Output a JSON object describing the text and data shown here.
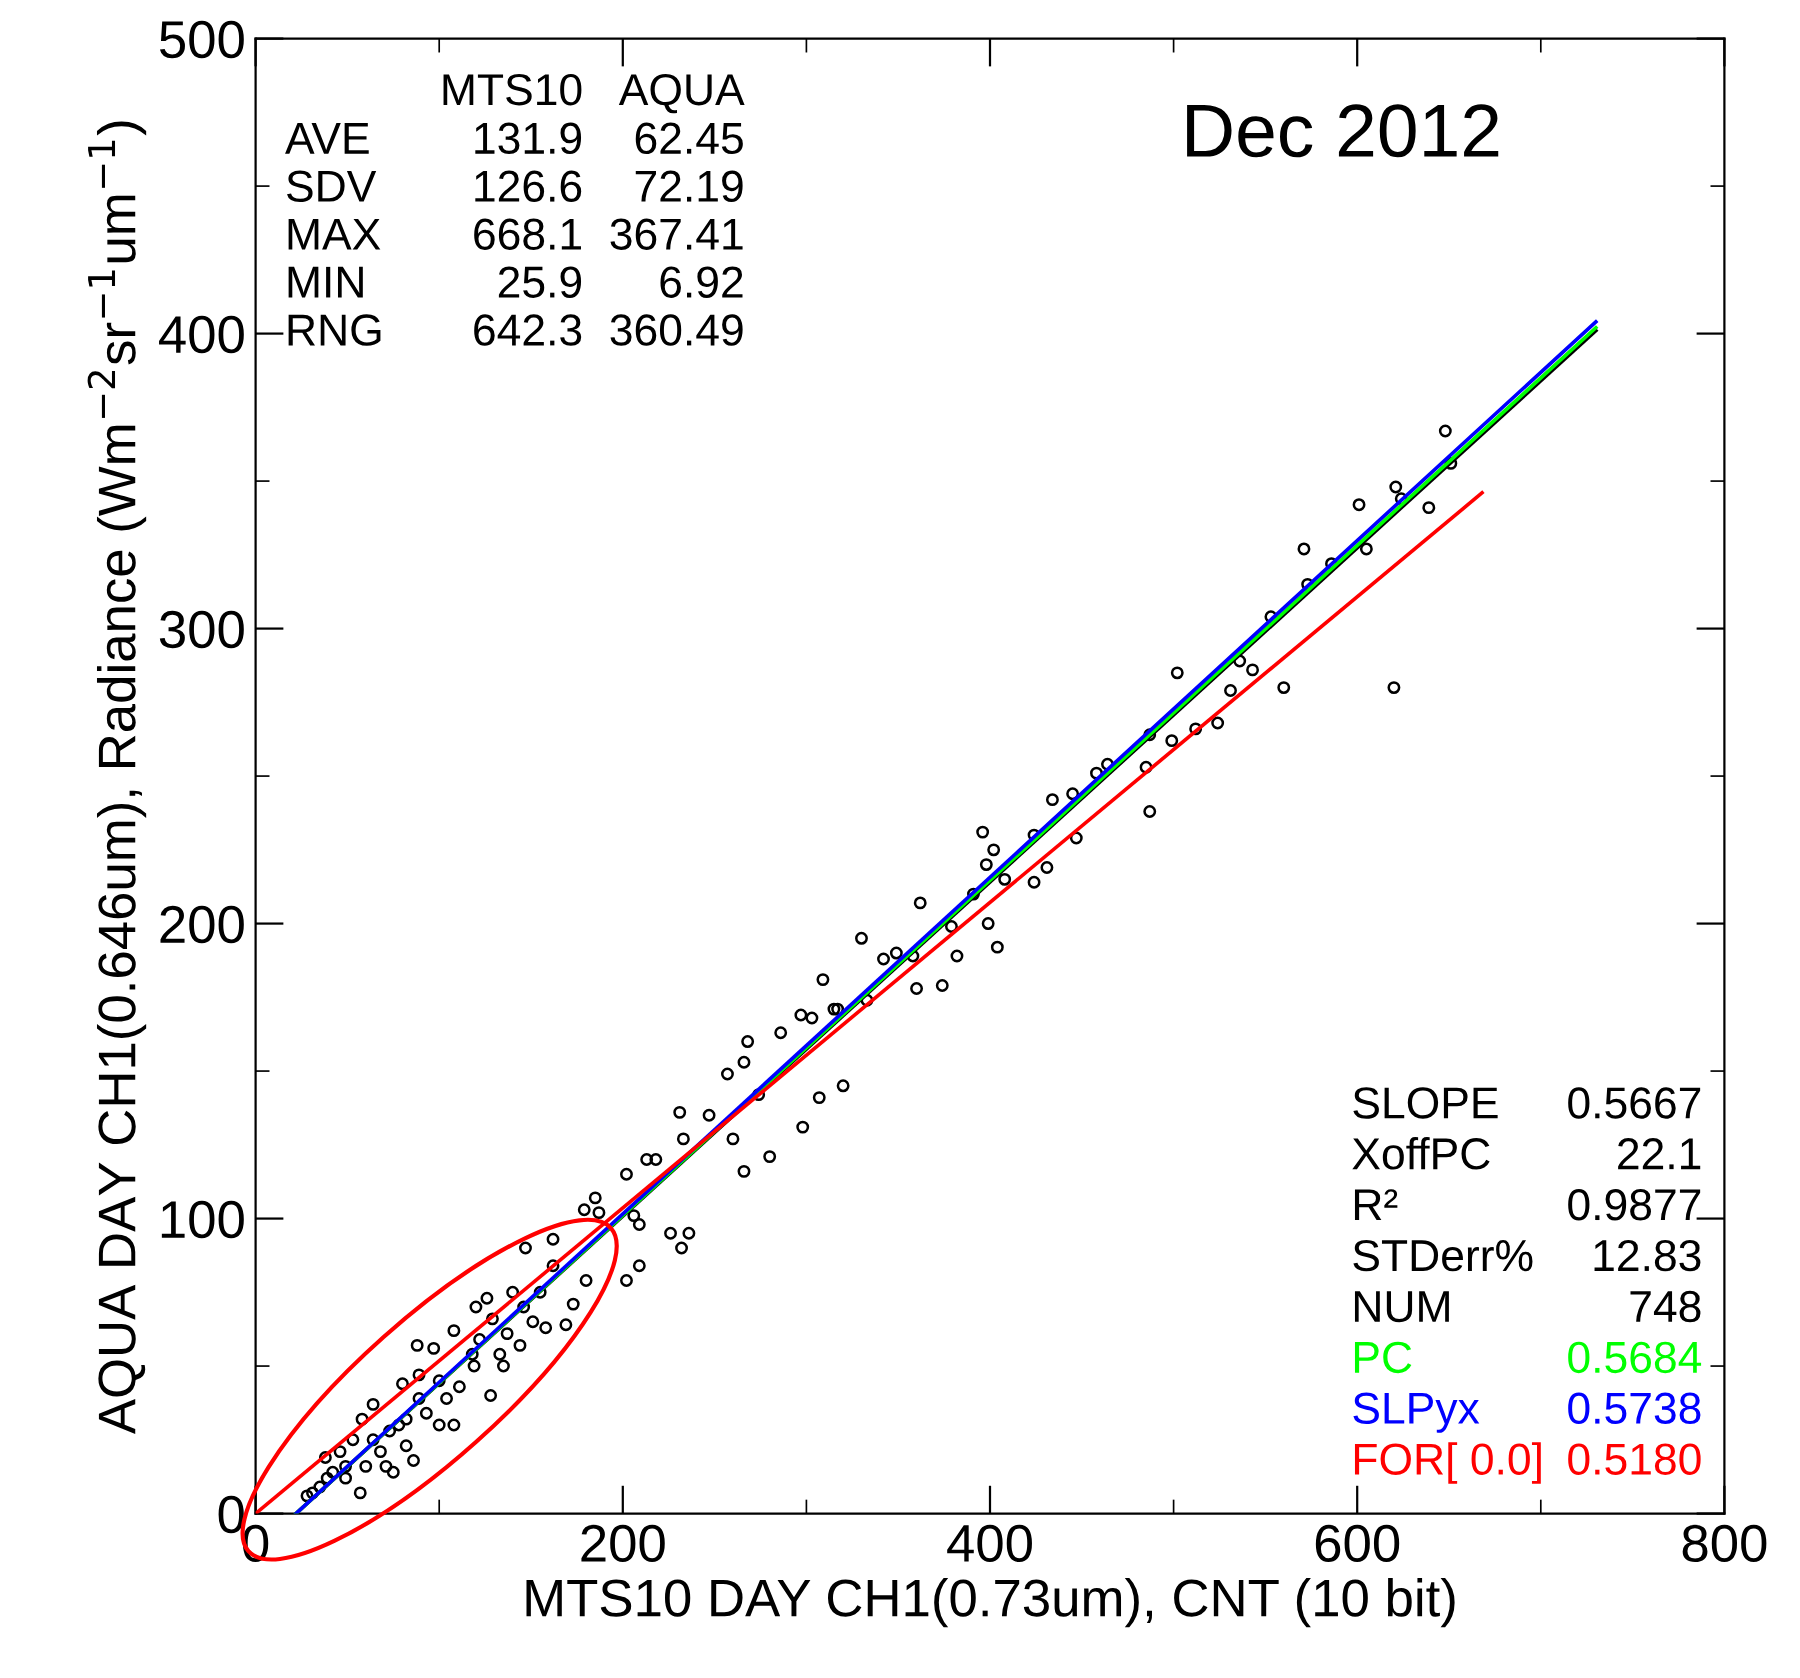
{
  "chart_data": {
    "type": "scatter",
    "title": "Dec 2012",
    "xlabel": "MTS10 DAY CH1(0.73um), CNT (10 bit)",
    "ylabel": "AQUA DAY CH1(0.646um), Radiance (Wm$^{−2}$sr$^{−1}$um$^{−1}$)",
    "xlim": [
      0,
      800
    ],
    "ylim": [
      0,
      500
    ],
    "xticks": [
      0,
      200,
      400,
      600,
      800
    ],
    "yticks": [
      0,
      100,
      200,
      300,
      400,
      500
    ],
    "grid": false,
    "legend": false,
    "annotations": [
      "MTS10",
      "AQUA",
      "AVE",
      "131.9",
      "62.45",
      "SDV",
      "126.6",
      "72.19",
      "MAX",
      "668.1",
      "367.41",
      "MIN",
      "25.9",
      "6.92",
      "RNG",
      "642.3",
      "360.49",
      "SLOPE",
      "0.5667",
      "XoffPC",
      "22.1",
      "R²",
      "0.9877",
      "STDerr%",
      "12.83",
      "NUM",
      "748",
      "0.5684",
      "0.5738",
      "0.5180"
    ],
    "series": [
      {
        "marker": "circle",
        "color": "#000000",
        "x": [
          624,
          639,
          571,
          573,
          586,
          605,
          553,
          560,
          543,
          531,
          524,
          512,
          502,
          487,
          487,
          499,
          485,
          464,
          458,
          445,
          434,
          447,
          424,
          396,
          402,
          398,
          431,
          424,
          408,
          391,
          362,
          399,
          404,
          382,
          379,
          330,
          342,
          349,
          358,
          360,
          374,
          309,
          297,
          317,
          536,
          601,
          621,
          648,
          651,
          620,
          333,
          303,
          268,
          266,
          286,
          315,
          257,
          274,
          307,
          320,
          298,
          231,
          247,
          233,
          260,
          213,
          218,
          280,
          266,
          202,
          206,
          185,
          179,
          187,
          209,
          226,
          232,
          236,
          209,
          202,
          147,
          162,
          180,
          162,
          173,
          169,
          158,
          146,
          137,
          120,
          126,
          108,
          135,
          128,
          119,
          88,
          97,
          80,
          89,
          104,
          64,
          58,
          73,
          100,
          53,
          68,
          82,
          38,
          42,
          35,
          28,
          57,
          49,
          75,
          86,
          108,
          111,
          122,
          144,
          133,
          151,
          93,
          64,
          46,
          31,
          60,
          78,
          89,
          100,
          49,
          39,
          71,
          82,
          118,
          129,
          140,
          155
        ],
        "values": [
          344,
          341,
          327,
          315,
          322,
          327,
          304,
          280,
          286,
          279,
          268,
          266,
          285,
          264,
          238,
          262,
          253,
          254,
          251,
          244,
          242,
          229,
          230,
          231,
          225,
          220,
          219,
          214,
          215,
          210,
          207,
          200,
          192,
          189,
          199,
          195,
          188,
          190,
          189,
          178,
          179,
          181,
          169,
          171,
          289,
          342,
          348,
          367,
          356,
          280,
          174,
          168,
          160,
          153,
          163,
          171,
          149,
          142,
          141,
          145,
          131,
          136,
          135,
          127,
          127,
          120,
          120,
          121,
          116,
          115,
          101,
          107,
          103,
          102,
          98,
          95,
          90,
          95,
          84,
          79,
          90,
          93,
          79,
          84,
          71,
          64,
          63,
          70,
          61,
          70,
          73,
          62,
          50,
          40,
          50,
          57,
          56,
          44,
          47,
          39,
          37,
          32,
          28,
          30,
          25,
          21,
          23,
          19,
          14,
          9,
          6,
          7,
          12,
          14,
          18,
          30,
          43,
          59,
          57,
          54,
          65,
          34,
          25,
          21,
          7,
          16,
          30,
          39,
          45,
          16,
          12,
          16,
          32,
          54,
          66,
          75,
          75
        ]
      },
      {
        "type": "line",
        "marker": "none",
        "color": "#000000",
        "x": [
          22,
          730
        ],
        "values": [
          0,
          401
        ]
      },
      {
        "type": "line",
        "marker": "none",
        "name": "PC",
        "color": "#00ff00",
        "x": [
          22,
          730
        ],
        "values": [
          0,
          402
        ]
      },
      {
        "type": "line",
        "marker": "none",
        "name": "SLPyx",
        "color": "#0000ff",
        "x": [
          22,
          730
        ],
        "values": [
          0,
          404
        ]
      },
      {
        "type": "line",
        "marker": "none",
        "name": "FOR[ 0.0]",
        "color": "#ff0000",
        "x": [
          0,
          668
        ],
        "values": [
          0,
          346
        ]
      }
    ]
  }
}
